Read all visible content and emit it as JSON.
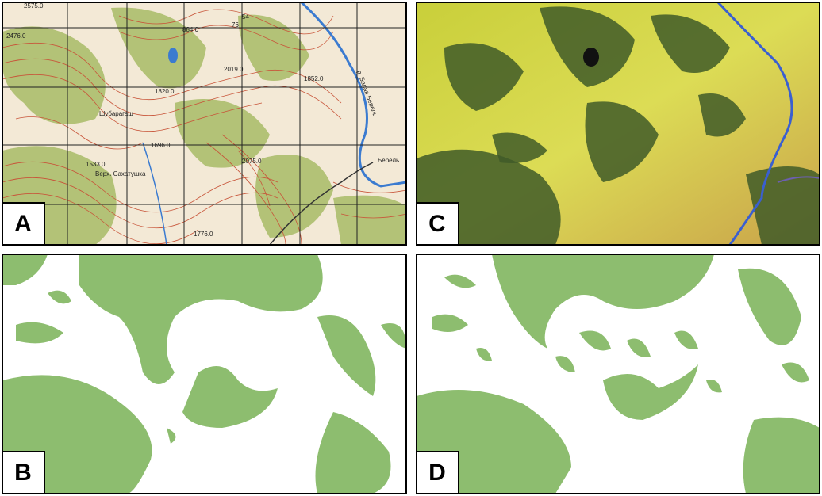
{
  "panels": [
    {
      "label": "A",
      "map_labels": [
        "54",
        "76",
        "Берель",
        "р. Белая Берель",
        "Верх. Сахатушка",
        "Шубарагаш",
        "2075.0",
        "1533.0",
        "1696.0",
        "1776.0",
        "2476.0",
        "2019.0",
        "1852.0",
        "1820.0",
        "884.0",
        "2575.0"
      ]
    },
    {
      "label": "B"
    },
    {
      "label": "C"
    },
    {
      "label": "D"
    }
  ]
}
